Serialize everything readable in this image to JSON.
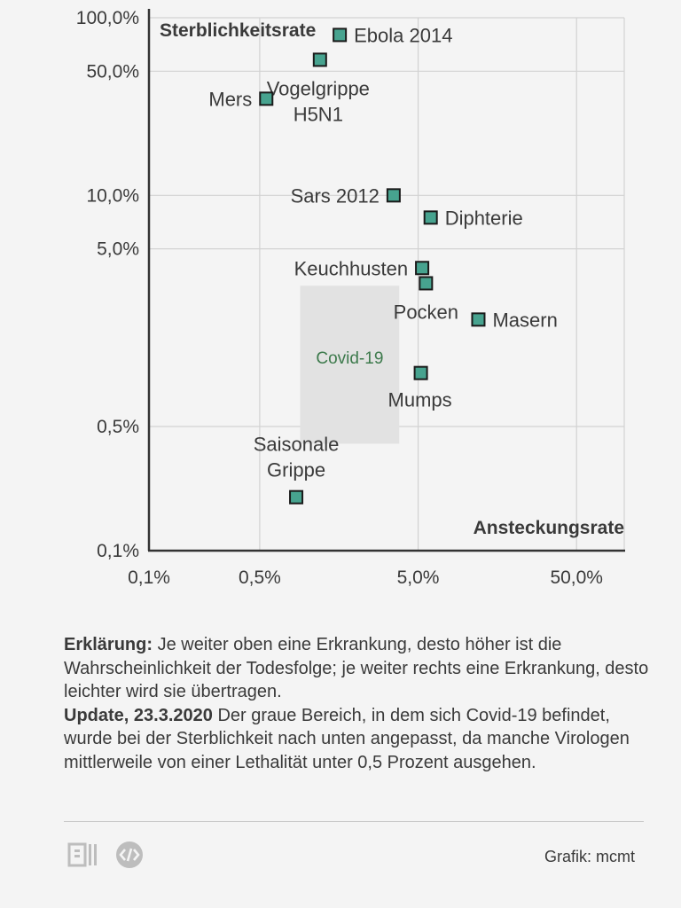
{
  "chart_data": {
    "type": "scatter",
    "xlabel": "Ansteckungsrate",
    "ylabel": "Sterblichkeitsrate",
    "x_scale": "log",
    "y_scale": "log",
    "xlim": [
      0.1,
      100
    ],
    "ylim": [
      0.1,
      100
    ],
    "x_ticks": [
      {
        "value": 0.1,
        "label": "0,1%"
      },
      {
        "value": 0.5,
        "label": "0,5%"
      },
      {
        "value": 5,
        "label": "5,0%"
      },
      {
        "value": 50,
        "label": "50,0%"
      }
    ],
    "y_ticks": [
      {
        "value": 0.1,
        "label": "0,1%"
      },
      {
        "value": 0.5,
        "label": "0,5%"
      },
      {
        "value": 5,
        "label": "5,0%"
      },
      {
        "value": 10,
        "label": "10,0%"
      },
      {
        "value": 50,
        "label": "50,0%"
      },
      {
        "value": 100,
        "label": "100,0%"
      }
    ],
    "grid": true,
    "marker_color": "#47a38f",
    "points": [
      {
        "name": "Ebola 2014",
        "label_lines": [
          "Ebola 2014"
        ],
        "x": 1.6,
        "y": 80
      },
      {
        "name": "Vogelgrippe H5N1",
        "label_lines": [
          "Vogelgrippe",
          "H5N1"
        ],
        "x": 1.2,
        "y": 58
      },
      {
        "name": "Mers",
        "label_lines": [
          "Mers"
        ],
        "x": 0.55,
        "y": 35
      },
      {
        "name": "Sars 2012",
        "label_lines": [
          "Sars 2012"
        ],
        "x": 3.5,
        "y": 10
      },
      {
        "name": "Diphterie",
        "label_lines": [
          "Diphterie"
        ],
        "x": 6,
        "y": 7.5
      },
      {
        "name": "Keuchhusten",
        "label_lines": [
          "Keuchhusten"
        ],
        "x": 5.3,
        "y": 3.9
      },
      {
        "name": "Pocken",
        "label_lines": [
          "Pocken"
        ],
        "x": 5.6,
        "y": 3.2
      },
      {
        "name": "Masern",
        "label_lines": [
          "Masern"
        ],
        "x": 12,
        "y": 2.0
      },
      {
        "name": "Mumps",
        "label_lines": [
          "Mumps"
        ],
        "x": 5.2,
        "y": 1.0
      },
      {
        "name": "Saisonale Grippe",
        "label_lines": [
          "Saisonale",
          "Grippe"
        ],
        "x": 0.85,
        "y": 0.2
      }
    ],
    "regions": [
      {
        "name": "Covid-19",
        "x_range": [
          0.9,
          3.8
        ],
        "y_range": [
          0.4,
          3.1
        ],
        "color": "#e2e2e2",
        "label_color": "#3d7a4c"
      }
    ]
  },
  "legend": {
    "erklaerung_label": "Erklärung:",
    "erklaerung_text": "Je weiter oben eine Erkrankung, desto höher ist die Wahrscheinlichkeit der Todesfolge; je weiter rechts eine Erkrankung, desto leichter wird sie übertragen.",
    "update_label": "Update, 23.3.2020",
    "update_text": "Der graue Bereich, in dem sich Covid-19 befindet, wurde bei der Sterblichkeit nach unten angepasst, da manche Virologen mittlerweile von einer Lethalität unter 0,5 Prozent ausgehen."
  },
  "footer": {
    "credit": "Grafik: mcmt",
    "icons": [
      "document-icon",
      "embed-code-icon"
    ]
  }
}
